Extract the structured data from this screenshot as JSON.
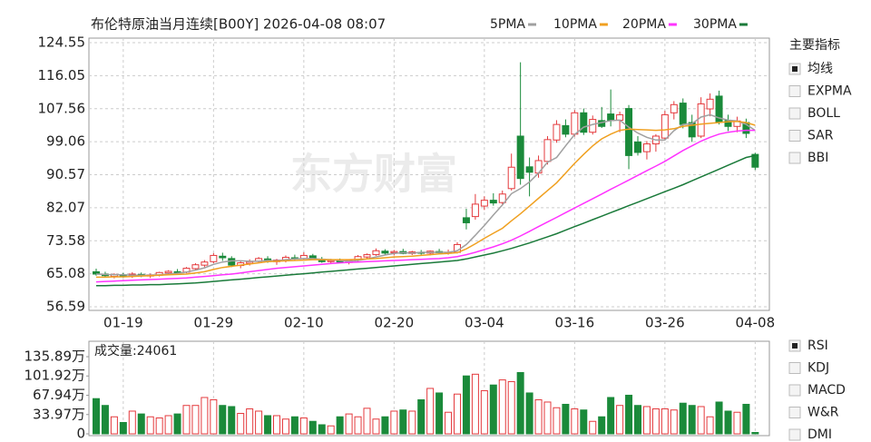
{
  "chart_data": {
    "type": "candlestick",
    "title": "布伦特原油当月连续[B00Y] 2026-04-08 08:07",
    "watermark": "东方财富",
    "up_color": "#e4393c",
    "down_color": "#1a8a3a",
    "grid": true,
    "ylim": [
      56.59,
      124.55
    ],
    "yticks": [
      56.59,
      65.08,
      73.58,
      82.07,
      90.57,
      99.06,
      107.56,
      116.05,
      124.55
    ],
    "categories": [
      null,
      null,
      null,
      "01-19",
      null,
      null,
      null,
      null,
      null,
      null,
      null,
      null,
      null,
      "01-29",
      null,
      null,
      null,
      null,
      null,
      null,
      null,
      null,
      null,
      "02-10",
      null,
      null,
      null,
      null,
      null,
      null,
      null,
      null,
      null,
      "02-20",
      null,
      null,
      null,
      null,
      null,
      null,
      null,
      null,
      null,
      "03-04",
      null,
      null,
      null,
      null,
      null,
      null,
      null,
      null,
      null,
      "03-16",
      null,
      null,
      null,
      null,
      null,
      null,
      null,
      null,
      null,
      "03-26",
      null,
      null,
      null,
      null,
      null,
      null,
      null,
      null,
      null,
      "04-08"
    ],
    "open": [
      65.6,
      65.0,
      64.4,
      64.8,
      64.5,
      64.9,
      64.5,
      64.7,
      65.3,
      65.6,
      65.5,
      66.4,
      67.3,
      68.2,
      69.6,
      69.0,
      67.2,
      67.8,
      68.3,
      68.9,
      68.2,
      68.5,
      69.2,
      69.0,
      69.7,
      68.8,
      68.2,
      68.4,
      68.0,
      68.6,
      69.4,
      70.0,
      70.9,
      70.5,
      70.8,
      70.3,
      70.6,
      70.4,
      70.8,
      70.5,
      70.6,
      79.5,
      79.8,
      82.5,
      84.0,
      83.4,
      87.0,
      100.5,
      92.6,
      91.0,
      94.0,
      99.5,
      103.2,
      101.0,
      106.5,
      101.5,
      104.5,
      106.2,
      104.6,
      107.6,
      99.0,
      96.5,
      98.5,
      100.0,
      106.5,
      109.0,
      104.0,
      100.5,
      107.5,
      110.8,
      104.5,
      103.0,
      104.0,
      95.8
    ],
    "high": [
      66.4,
      65.6,
      65.2,
      65.3,
      65.5,
      65.4,
      65.1,
      65.6,
      66.0,
      66.3,
      66.8,
      67.8,
      68.6,
      70.4,
      70.5,
      69.6,
      68.3,
      68.8,
      69.4,
      69.6,
      68.9,
      69.8,
      70.0,
      70.6,
      70.2,
      69.4,
      68.9,
      69.0,
      68.8,
      69.9,
      70.3,
      71.6,
      71.4,
      71.2,
      71.5,
      71.0,
      71.2,
      71.1,
      71.5,
      71.3,
      73.2,
      81.8,
      85.6,
      85.0,
      85.8,
      86.5,
      96.0,
      119.5,
      95.0,
      95.5,
      100.5,
      104.6,
      104.8,
      107.2,
      107.6,
      105.8,
      108.0,
      112.5,
      106.8,
      108.5,
      100.5,
      99.2,
      101.0,
      107.0,
      109.5,
      110.2,
      106.0,
      110.5,
      111.5,
      112.2,
      106.0,
      105.5,
      105.0,
      96.2
    ],
    "low": [
      64.6,
      64.2,
      63.9,
      64.1,
      64.0,
      64.2,
      64.0,
      64.4,
      64.9,
      65.1,
      65.2,
      66.0,
      66.8,
      67.8,
      68.4,
      66.8,
      66.5,
      67.2,
      67.8,
      67.9,
      67.4,
      68.0,
      68.5,
      68.7,
      68.6,
      67.9,
      67.6,
      67.8,
      67.5,
      68.2,
      68.9,
      69.7,
      70.0,
      69.8,
      70.1,
      69.9,
      70.0,
      69.8,
      70.2,
      70.0,
      70.3,
      76.5,
      79.0,
      81.5,
      82.6,
      82.9,
      86.5,
      88.0,
      85.0,
      89.8,
      93.2,
      98.8,
      100.2,
      100.4,
      100.8,
      100.9,
      102.6,
      103.0,
      101.5,
      92.0,
      95.5,
      94.5,
      96.5,
      99.5,
      104.8,
      102.5,
      99.0,
      100.0,
      105.6,
      103.5,
      101.8,
      101.5,
      100.0,
      91.8
    ],
    "close": [
      65.0,
      64.6,
      64.9,
      64.5,
      65.0,
      64.6,
      64.8,
      65.4,
      65.7,
      65.4,
      66.5,
      67.4,
      68.1,
      69.8,
      69.2,
      67.3,
      67.9,
      68.2,
      69.0,
      68.3,
      68.6,
      69.3,
      69.0,
      69.8,
      68.9,
      68.2,
      68.5,
      68.1,
      68.6,
      69.5,
      70.0,
      71.0,
      70.4,
      70.8,
      70.3,
      70.7,
      70.4,
      70.9,
      70.5,
      70.6,
      72.6,
      78.2,
      83.0,
      84.0,
      83.3,
      85.6,
      92.5,
      89.6,
      91.2,
      94.2,
      99.6,
      103.5,
      101.0,
      106.5,
      101.5,
      104.8,
      103.0,
      104.5,
      106.0,
      95.5,
      96.3,
      98.5,
      100.5,
      106.0,
      108.6,
      103.5,
      100.3,
      108.8,
      110.0,
      104.2,
      103.0,
      104.4,
      101.2,
      92.5
    ],
    "ma_series": [
      {
        "name": "5PMA",
        "color": "#a0a0a0",
        "values": [
          65.0,
          64.9,
          64.8,
          64.8,
          64.7,
          64.7,
          64.7,
          64.8,
          65.0,
          65.2,
          65.5,
          66.0,
          66.6,
          67.5,
          68.1,
          68.4,
          68.4,
          68.3,
          68.3,
          68.5,
          68.4,
          68.7,
          68.9,
          69.0,
          69.0,
          68.8,
          68.7,
          68.5,
          68.3,
          68.5,
          68.9,
          69.4,
          69.9,
          70.3,
          70.5,
          70.4,
          70.6,
          70.6,
          70.6,
          70.6,
          71.0,
          72.6,
          75.0,
          77.5,
          80.2,
          82.8,
          85.7,
          87.0,
          88.7,
          91.0,
          93.8,
          95.0,
          98.0,
          100.9,
          102.8,
          103.5,
          104.0,
          104.5,
          104.6,
          102.8,
          101.3,
          100.2,
          99.5,
          99.5,
          101.9,
          103.5,
          103.7,
          105.4,
          106.0,
          105.2,
          104.6,
          104.4,
          103.5,
          102.0
        ]
      },
      {
        "name": "10PMA",
        "color": "#f0a020",
        "values": [
          64.2,
          64.2,
          64.3,
          64.3,
          64.4,
          64.5,
          64.6,
          64.7,
          64.8,
          64.9,
          65.0,
          65.3,
          65.6,
          66.2,
          66.7,
          67.0,
          67.3,
          67.6,
          67.9,
          68.2,
          68.3,
          68.4,
          68.5,
          68.6,
          68.7,
          68.7,
          68.7,
          68.7,
          68.7,
          68.8,
          68.9,
          69.0,
          69.2,
          69.4,
          69.5,
          69.6,
          69.8,
          70.0,
          70.2,
          70.3,
          70.5,
          71.5,
          72.8,
          74.2,
          75.5,
          76.8,
          78.7,
          80.5,
          82.5,
          84.5,
          86.5,
          88.5,
          91.0,
          93.5,
          95.8,
          98.0,
          99.8,
          101.0,
          102.0,
          102.3,
          102.2,
          102.1,
          102.0,
          102.1,
          102.4,
          103.0,
          103.3,
          103.6,
          103.8,
          104.0,
          104.2,
          104.3,
          104.0,
          103.3
        ]
      },
      {
        "name": "20PMA",
        "color": "#ff33ff",
        "values": [
          63.0,
          63.1,
          63.2,
          63.3,
          63.4,
          63.5,
          63.6,
          63.7,
          63.8,
          63.9,
          64.0,
          64.2,
          64.4,
          64.6,
          64.8,
          65.0,
          65.3,
          65.6,
          65.9,
          66.2,
          66.5,
          66.7,
          66.9,
          67.1,
          67.3,
          67.5,
          67.7,
          67.9,
          68.0,
          68.1,
          68.2,
          68.3,
          68.4,
          68.5,
          68.6,
          68.7,
          68.8,
          68.9,
          69.0,
          69.2,
          69.5,
          70.0,
          70.6,
          71.3,
          72.0,
          72.8,
          73.7,
          74.8,
          76.0,
          77.2,
          78.4,
          79.6,
          80.8,
          82.0,
          83.2,
          84.4,
          85.6,
          86.8,
          88.0,
          89.2,
          90.4,
          91.6,
          92.8,
          94.0,
          95.4,
          96.8,
          98.0,
          99.2,
          100.2,
          101.0,
          101.5,
          101.8,
          102.0,
          102.0
        ]
      },
      {
        "name": "30PMA",
        "color": "#1a7a3a",
        "values": [
          62.0,
          62.0,
          62.1,
          62.1,
          62.2,
          62.2,
          62.3,
          62.3,
          62.4,
          62.5,
          62.6,
          62.7,
          62.9,
          63.1,
          63.3,
          63.5,
          63.7,
          63.9,
          64.1,
          64.3,
          64.5,
          64.7,
          64.9,
          65.1,
          65.3,
          65.5,
          65.7,
          65.9,
          66.1,
          66.3,
          66.5,
          66.7,
          66.9,
          67.1,
          67.3,
          67.5,
          67.7,
          67.9,
          68.1,
          68.3,
          68.5,
          68.9,
          69.4,
          69.9,
          70.4,
          71.0,
          71.6,
          72.3,
          73.0,
          73.8,
          74.6,
          75.4,
          76.3,
          77.2,
          78.1,
          79.0,
          79.9,
          80.8,
          81.7,
          82.6,
          83.5,
          84.4,
          85.3,
          86.2,
          87.1,
          88.0,
          89.0,
          90.0,
          91.0,
          92.0,
          93.0,
          94.0,
          95.0,
          95.5
        ]
      }
    ],
    "volume": {
      "label": "成交量:24061",
      "ylim": [
        0,
        135.89
      ],
      "yticks": [
        0,
        {
          "value": 33.97,
          "label": "33.97万"
        },
        {
          "value": 67.94,
          "label": "67.94万"
        },
        {
          "value": 101.92,
          "label": "101.92万"
        },
        {
          "value": 135.89,
          "label": "135.89万"
        }
      ],
      "values": [
        62,
        50,
        30,
        20,
        40,
        35,
        30,
        28,
        32,
        35,
        50,
        50,
        64,
        60,
        50,
        48,
        36,
        44,
        40,
        32,
        32,
        26,
        30,
        28,
        22,
        16,
        14,
        30,
        35,
        30,
        45,
        26,
        30,
        40,
        42,
        40,
        60,
        80,
        72,
        38,
        70,
        102,
        105,
        76,
        86,
        95,
        92,
        108,
        72,
        60,
        56,
        46,
        52,
        44,
        42,
        22,
        30,
        64,
        50,
        68,
        50,
        48,
        44,
        44,
        42,
        54,
        50,
        48,
        30,
        56,
        40,
        38,
        52,
        2.4061
      ]
    }
  },
  "indicator_panel": {
    "main_title": "主要指标",
    "main": [
      {
        "label": "均线",
        "checked": true
      },
      {
        "label": "EXPMA",
        "checked": false
      },
      {
        "label": "BOLL",
        "checked": false
      },
      {
        "label": "SAR",
        "checked": false
      },
      {
        "label": "BBI",
        "checked": false
      }
    ],
    "sub": [
      {
        "label": "RSI",
        "checked": true
      },
      {
        "label": "KDJ",
        "checked": false
      },
      {
        "label": "MACD",
        "checked": false
      },
      {
        "label": "W&R",
        "checked": false
      },
      {
        "label": "DMI",
        "checked": false
      }
    ]
  }
}
